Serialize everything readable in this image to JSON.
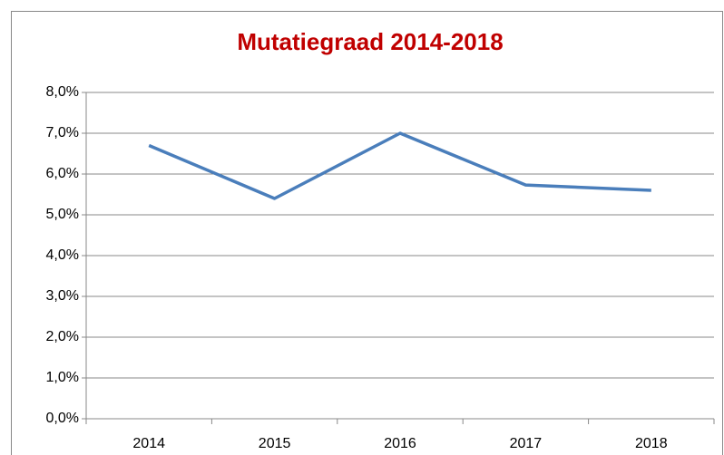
{
  "chart_data": {
    "type": "line",
    "title": "Mutatiegraad 2014-2018",
    "categories": [
      "2014",
      "2015",
      "2016",
      "2017",
      "2018"
    ],
    "series": [
      {
        "name": "Mutatiegraad",
        "color": "#4a7ebb",
        "values": [
          6.7,
          5.4,
          7.0,
          5.73,
          5.6
        ]
      }
    ],
    "ylim": [
      0,
      8
    ],
    "yticks": [
      {
        "value": 0,
        "label": "0,0%"
      },
      {
        "value": 1,
        "label": "1,0%"
      },
      {
        "value": 2,
        "label": "2,0%"
      },
      {
        "value": 3,
        "label": "3,0%"
      },
      {
        "value": 4,
        "label": "4,0%"
      },
      {
        "value": 5,
        "label": "5,0%"
      },
      {
        "value": 6,
        "label": "6,0%"
      },
      {
        "value": 7,
        "label": "7,0%"
      },
      {
        "value": 8,
        "label": "8,0%"
      }
    ],
    "grid": true
  }
}
